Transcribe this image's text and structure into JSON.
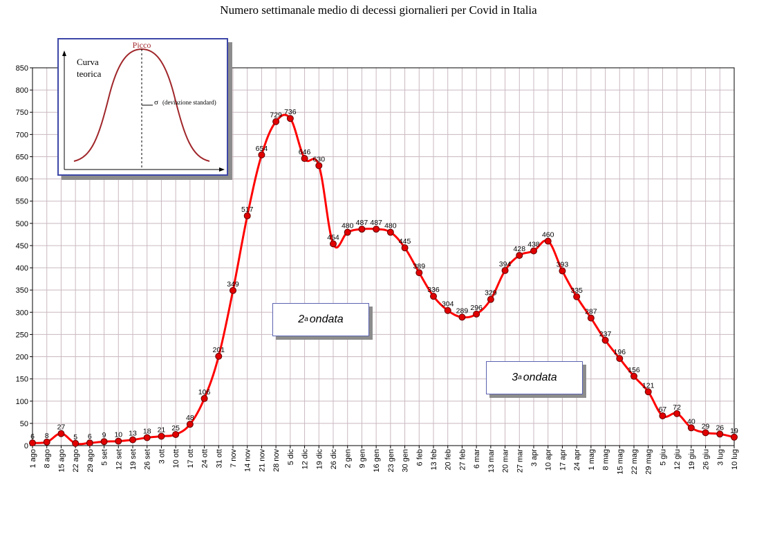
{
  "chart_data": {
    "type": "line",
    "title": "Numero settimanale medio di decessi giornalieri per Covid in Italia",
    "xlabel": "",
    "ylabel": "",
    "ylim": [
      0,
      850
    ],
    "yticks": [
      0,
      50,
      100,
      150,
      200,
      250,
      300,
      350,
      400,
      450,
      500,
      550,
      600,
      650,
      700,
      750,
      800,
      850
    ],
    "grid": true,
    "categories": [
      "1 ago",
      "8 ago",
      "15 ago",
      "22 ago",
      "29 ago",
      "5 set",
      "12 set",
      "19 set",
      "26 set",
      "3 ott",
      "10 ott",
      "17 ott",
      "24 ott",
      "31 ott",
      "7 nov",
      "14 nov",
      "21 nov",
      "28 nov",
      "5 dic",
      "12 dic",
      "19 dic",
      "26 dic",
      "2 gen",
      "9 gen",
      "16 gen",
      "23 gen",
      "30 gen",
      "6 feb",
      "13 feb",
      "20 feb",
      "27 feb",
      "6 mar",
      "13 mar",
      "20 mar",
      "27 mar",
      "3 apr",
      "10 apr",
      "17 apr",
      "24 apr",
      "1 mag",
      "8 mag",
      "15 mag",
      "22 mag",
      "29 mag",
      "5 giu",
      "12 giu",
      "19 giu",
      "26 giu",
      "3 lug",
      "10 lug"
    ],
    "series": [
      {
        "values": [
          6,
          8,
          27,
          5,
          6,
          9,
          10,
          13,
          18,
          21,
          25,
          48,
          106,
          201,
          349,
          517,
          654,
          729,
          736,
          646,
          630,
          454,
          480,
          487,
          487,
          480,
          445,
          389,
          336,
          304,
          289,
          296,
          329,
          394,
          428,
          438,
          460,
          393,
          335,
          287,
          237,
          196,
          156,
          121,
          67,
          72,
          40,
          29,
          26,
          19
        ],
        "color": "#ff0000"
      }
    ],
    "annotations": [
      {
        "prefix": "2",
        "sup": "a",
        "text": "ondata"
      },
      {
        "prefix": "3",
        "sup": "a",
        "text": "ondata"
      }
    ],
    "inset": {
      "peak_label": "Picco",
      "curve_label_1": "Curva",
      "curve_label_2": "teorica",
      "sigma_symbol": "σ",
      "sigma_label": "(deviazione standard)"
    }
  }
}
